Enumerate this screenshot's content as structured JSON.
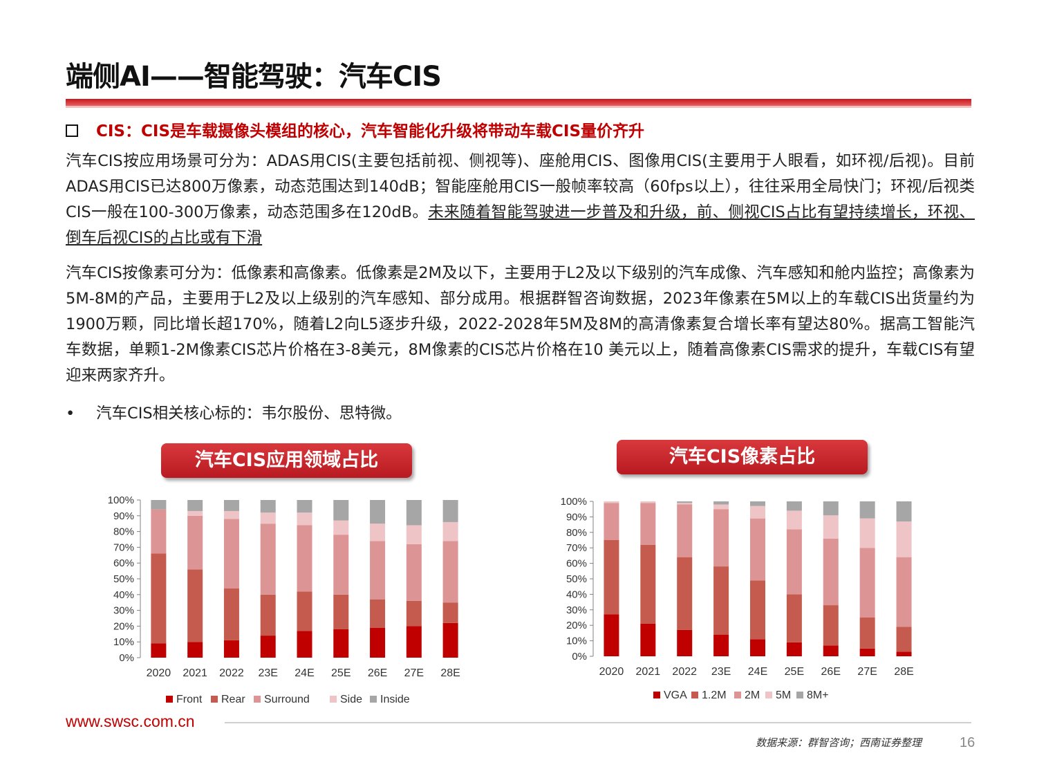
{
  "title": "端侧AI——智能驾驶：汽车CIS",
  "headline": "CIS：CIS是车载摄像头模组的核心，汽车智能化升级将带动车载CIS量价齐升",
  "para1": {
    "text": "汽车CIS按应用场景可分为：ADAS用CIS(主要包括前视、侧视等)、座舱用CIS、图像用CIS(主要用于人眼看，如环视/后视)。目前ADAS用CIS已达800万像素，动态范围达到140dB；智能座舱用CIS一般帧率较高（60fps以上），往往采用全局快门；环视/后视类CIS一般在100-300万像素，动态范围多在120dB。",
    "underlined": "未来随着智能驾驶进一步普及和升级，前、侧视CIS占比有望持续增长，环视、倒车后视CIS的占比或有下滑"
  },
  "para2": "汽车CIS按像素可分为：低像素和高像素。低像素是2M及以下，主要用于L2及以下级别的汽车成像、汽车感知和舱内监控；高像素为5M-8M的产品，主要用于L2及以上级别的汽车感知、部分成用。根据群智咨询数据，2023年像素在5M以上的车载CIS出货量约为1900万颗，同比增长超170%，随着L2向L5逐步升级，2022-2028年5M及8M的高清像素复合增长率有望达80%。据高工智能汽车数据，单颗1-2M像素CIS芯片价格在3-8美元，8M像素的CIS芯片价格在10  美元以上，随着高像素CIS需求的提升，车载CIS有望迎来两家齐升。",
  "bullet": "汽车CIS相关核心标的：韦尔股份、思特微。",
  "footer": {
    "url": "www.swsc.com.cn",
    "source": "数据来源：群智咨询；西南证券整理",
    "page": "16"
  },
  "chart_data": [
    {
      "type": "bar",
      "stacked": true,
      "title": "汽车CIS应用领域占比",
      "categories": [
        "2020",
        "2021",
        "2022",
        "23E",
        "24E",
        "25E",
        "26E",
        "27E",
        "28E"
      ],
      "ylim": [
        0,
        100
      ],
      "yticks": [
        "0%",
        "10%",
        "20%",
        "30%",
        "40%",
        "50%",
        "60%",
        "70%",
        "80%",
        "90%",
        "100%"
      ],
      "legend_position": "bottom",
      "series": [
        {
          "name": "Front",
          "color": "#c00000",
          "values": [
            9,
            10,
            11,
            14,
            17,
            18,
            19,
            20,
            22
          ]
        },
        {
          "name": "Rear",
          "color": "#c55a4e",
          "values": [
            57,
            46,
            33,
            26,
            25,
            22,
            18,
            16,
            13
          ]
        },
        {
          "name": "Surround",
          "color": "#dc9494",
          "values": [
            28,
            34,
            44,
            45,
            42,
            38,
            37,
            36,
            39
          ]
        },
        {
          "name": "Side",
          "color": "#efc4c6",
          "values": [
            0,
            3,
            5,
            7,
            8,
            9,
            11,
            12,
            12
          ]
        },
        {
          "name": "Inside",
          "color": "#a6a6a6",
          "values": [
            6,
            7,
            7,
            8,
            8,
            13,
            15,
            16,
            14
          ]
        }
      ]
    },
    {
      "type": "bar",
      "stacked": true,
      "title": "汽车CIS像素占比",
      "categories": [
        "2020",
        "2021",
        "2022",
        "23E",
        "24E",
        "25E",
        "26E",
        "27E",
        "28E"
      ],
      "ylim": [
        0,
        100
      ],
      "yticks": [
        "0%",
        "10%",
        "20%",
        "30%",
        "40%",
        "50%",
        "60%",
        "70%",
        "80%",
        "90%",
        "100%"
      ],
      "legend_position": "bottom",
      "series": [
        {
          "name": "VGA",
          "color": "#c00000",
          "values": [
            27,
            21,
            17,
            14,
            11,
            9,
            7,
            5,
            3
          ]
        },
        {
          "name": "1.2M",
          "color": "#c55a4e",
          "values": [
            48,
            51,
            47,
            44,
            38,
            31,
            26,
            20,
            16
          ]
        },
        {
          "name": "2M",
          "color": "#dc9494",
          "values": [
            24,
            27,
            34,
            37,
            40,
            42,
            43,
            45,
            45
          ]
        },
        {
          "name": "5M",
          "color": "#efc4c6",
          "values": [
            1,
            1,
            1,
            3,
            8,
            12,
            15,
            19,
            23
          ]
        },
        {
          "name": "8M+",
          "color": "#a6a6a6",
          "values": [
            0,
            0,
            1,
            2,
            3,
            6,
            9,
            11,
            13
          ]
        }
      ]
    }
  ]
}
